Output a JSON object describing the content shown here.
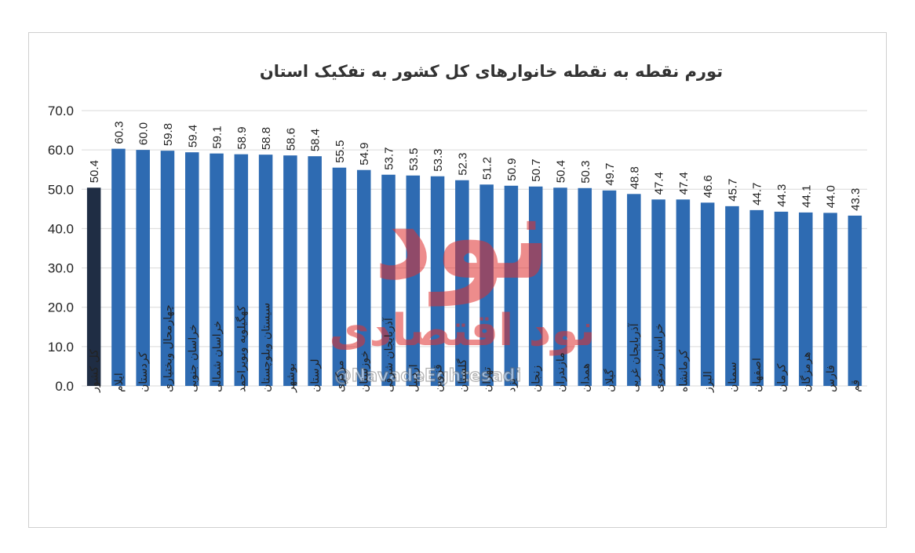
{
  "chart_data": {
    "type": "bar",
    "title": "تورم نقطه به نقطه خانوارهای کل کشور به تفکیک استان",
    "xlabel": "",
    "ylabel": "",
    "ylim": [
      0,
      70
    ],
    "yticks": [
      "0.0",
      "10.0",
      "20.0",
      "30.0",
      "40.0",
      "50.0",
      "60.0",
      "70.0"
    ],
    "grid": true,
    "legend": "none",
    "categories": [
      "کل کشور",
      "ایلام",
      "کردستان",
      "چهارمحال وبختیاری",
      "خراسان جنوبی",
      "خراسان شمالی",
      "کهگیلویه وبویراحمد",
      "سیستان وبلوچستان",
      "بوشهر",
      "لرستان",
      "مرکزی",
      "خوزستان",
      "آذربایجان شرقی",
      "اردبیل",
      "قزوین",
      "گلستان",
      "تهران",
      "یزد",
      "زنجان",
      "مازندران",
      "همدان",
      "گیلان",
      "آذربایجان غربی",
      "خراسان رضوی",
      "کرمانشاه",
      "البرز",
      "سمنان",
      "اصفهان",
      "کرمان",
      "هرمزگان",
      "فارس",
      "قم"
    ],
    "values": [
      50.4,
      60.3,
      60.0,
      59.8,
      59.4,
      59.1,
      58.9,
      58.8,
      58.6,
      58.4,
      55.5,
      54.9,
      53.7,
      53.5,
      53.3,
      52.3,
      51.2,
      50.9,
      50.7,
      50.4,
      50.3,
      49.7,
      48.8,
      47.4,
      47.4,
      46.6,
      45.7,
      44.7,
      44.3,
      44.1,
      44.0,
      43.3
    ],
    "value_labels": [
      "50.4",
      "60.3",
      "60.0",
      "59.8",
      "59.4",
      "59.1",
      "58.9",
      "58.8",
      "58.6",
      "58.4",
      "55.5",
      "54.9",
      "53.7",
      "53.5",
      "53.3",
      "52.3",
      "51.2",
      "50.9",
      "50.7",
      "50.4",
      "50.3",
      "49.7",
      "48.8",
      "47.4",
      "47.4",
      "46.6",
      "45.7",
      "44.7",
      "44.3",
      "44.1",
      "44.0",
      "43.3"
    ],
    "colors": {
      "highlight": "#1f2d44",
      "bar": "#2e6bb2",
      "grid": "#d9d9d9"
    }
  },
  "watermark": {
    "logo_text": "نود",
    "brand_text": "نود اقتصادی",
    "handle": "@NavadeEghtesadi",
    "color": "#e0302f"
  }
}
